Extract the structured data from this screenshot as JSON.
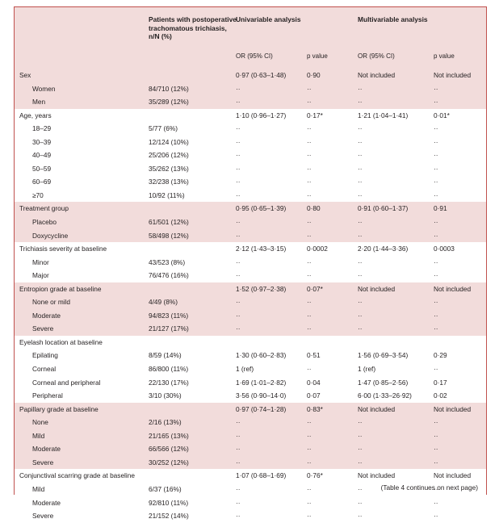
{
  "header": {
    "col_patients": "Patients with postoperative trachomatous trichiasis, n/N (%)",
    "univariable": "Univariable analysis",
    "multivariable": "Multivariable analysis",
    "or_label": "OR (95% CI)",
    "p_label": "p value",
    "or_label_mv": "OR (95% CI)",
    "p_label_mv": "p value"
  },
  "groups": [
    {
      "label": "Sex",
      "uor": "0·97 (0·63–1·48)",
      "up": "0·90",
      "mor": "Not included",
      "mp": "Not included",
      "rows": [
        {
          "label": "Women",
          "n": "84/710 (12%)",
          "uor": "··",
          "up": "··",
          "mor": "··",
          "mp": "··"
        },
        {
          "label": "Men",
          "n": "35/289 (12%)",
          "uor": "··",
          "up": "··",
          "mor": "··",
          "mp": "··"
        }
      ]
    },
    {
      "label": "Age, years",
      "uor": "1·10 (0·96–1·27)",
      "up": "0·17*",
      "mor": "1·21 (1·04–1·41)",
      "mp": "0·01*",
      "rows": [
        {
          "label": "18–29",
          "n": "5/77 (6%)",
          "uor": "··",
          "up": "··",
          "mor": "··",
          "mp": "··"
        },
        {
          "label": "30–39",
          "n": "12/124 (10%)",
          "uor": "··",
          "up": "··",
          "mor": "··",
          "mp": "··"
        },
        {
          "label": "40–49",
          "n": "25/206 (12%)",
          "uor": "··",
          "up": "··",
          "mor": "··",
          "mp": "··"
        },
        {
          "label": "50–59",
          "n": "35/262 (13%)",
          "uor": "··",
          "up": "··",
          "mor": "··",
          "mp": "··"
        },
        {
          "label": "60–69",
          "n": "32/238 (13%)",
          "uor": "··",
          "up": "··",
          "mor": "··",
          "mp": "··"
        },
        {
          "label": "≥70",
          "n": "10/92 (11%)",
          "uor": "··",
          "up": "··",
          "mor": "··",
          "mp": "··"
        }
      ]
    },
    {
      "label": "Treatment group",
      "uor": "0·95 (0·65–1·39)",
      "up": "0·80",
      "mor": "0·91 (0·60–1·37)",
      "mp": "0·91",
      "rows": [
        {
          "label": "Placebo",
          "n": "61/501 (12%)",
          "uor": "··",
          "up": "··",
          "mor": "··",
          "mp": "··"
        },
        {
          "label": "Doxycycline",
          "n": "58/498 (12%)",
          "uor": "··",
          "up": "··",
          "mor": "··",
          "mp": "··"
        }
      ]
    },
    {
      "label": "Trichiasis severity at baseline",
      "uor": "2·12 (1·43–3·15)",
      "up": "0·0002",
      "mor": "2·20 (1·44–3·36)",
      "mp": "0·0003",
      "rows": [
        {
          "label": "Minor",
          "n": "43/523 (8%)",
          "uor": "··",
          "up": "··",
          "mor": "··",
          "mp": "··"
        },
        {
          "label": "Major",
          "n": "76/476 (16%)",
          "uor": "··",
          "up": "··",
          "mor": "··",
          "mp": "··"
        }
      ]
    },
    {
      "label": "Entropion grade at baseline",
      "uor": "1·52 (0·97–2·38)",
      "up": "0·07*",
      "mor": "Not included",
      "mp": "Not included",
      "rows": [
        {
          "label": "None or mild",
          "n": "4/49 (8%)",
          "uor": "··",
          "up": "··",
          "mor": "··",
          "mp": "··"
        },
        {
          "label": "Moderate",
          "n": "94/823 (11%)",
          "uor": "··",
          "up": "··",
          "mor": "··",
          "mp": "··"
        },
        {
          "label": "Severe",
          "n": "21/127 (17%)",
          "uor": "··",
          "up": "··",
          "mor": "··",
          "mp": "··"
        }
      ]
    },
    {
      "label": "Eyelash location at baseline",
      "uor": "",
      "up": "",
      "mor": "",
      "mp": "",
      "rows": [
        {
          "label": "Epilating",
          "n": "8/59 (14%)",
          "uor": "1·30 (0·60–2·83)",
          "up": "0·51",
          "mor": "1·56 (0·69–3·54)",
          "mp": "0·29"
        },
        {
          "label": "Corneal",
          "n": "86/800 (11%)",
          "uor": "1 (ref)",
          "up": "··",
          "mor": "1 (ref)",
          "mp": "··"
        },
        {
          "label": "Corneal and peripheral",
          "n": "22/130 (17%)",
          "uor": "1·69 (1·01–2·82)",
          "up": "0·04",
          "mor": "1·47 (0·85–2·56)",
          "mp": "0·17"
        },
        {
          "label": "Peripheral",
          "n": "3/10 (30%)",
          "uor": "3·56 (0·90–14·0)",
          "up": "0·07",
          "mor": "6·00 (1·33–26·92)",
          "mp": "0·02"
        }
      ]
    },
    {
      "label": "Papillary grade at baseline",
      "uor": "0·97 (0·74–1·28)",
      "up": "0·83*",
      "mor": "Not included",
      "mp": "Not included",
      "rows": [
        {
          "label": "None",
          "n": "2/16 (13%)",
          "uor": "··",
          "up": "··",
          "mor": "··",
          "mp": "··"
        },
        {
          "label": "Mild",
          "n": "21/165 (13%)",
          "uor": "··",
          "up": "··",
          "mor": "··",
          "mp": "··"
        },
        {
          "label": "Moderate",
          "n": "66/566 (12%)",
          "uor": "··",
          "up": "··",
          "mor": "··",
          "mp": "··"
        },
        {
          "label": "Severe",
          "n": "30/252 (12%)",
          "uor": "··",
          "up": "··",
          "mor": "··",
          "mp": "··"
        }
      ]
    },
    {
      "label": "Conjunctival scarring grade at baseline",
      "uor": "1·07 (0·68–1·69)",
      "up": "0·76*",
      "mor": "Not included",
      "mp": "Not included",
      "rows": [
        {
          "label": "Mild",
          "n": "6/37 (16%)",
          "uor": "··",
          "up": "··",
          "mor": "··",
          "mp": "··"
        },
        {
          "label": "Moderate",
          "n": "92/810 (11%)",
          "uor": "··",
          "up": "··",
          "mor": "··",
          "mp": "··"
        },
        {
          "label": "Severe",
          "n": "21/152 (14%)",
          "uor": "··",
          "up": "··",
          "mor": "··",
          "mp": "··"
        }
      ]
    }
  ],
  "footer": "(Table 4 continues on next page)"
}
